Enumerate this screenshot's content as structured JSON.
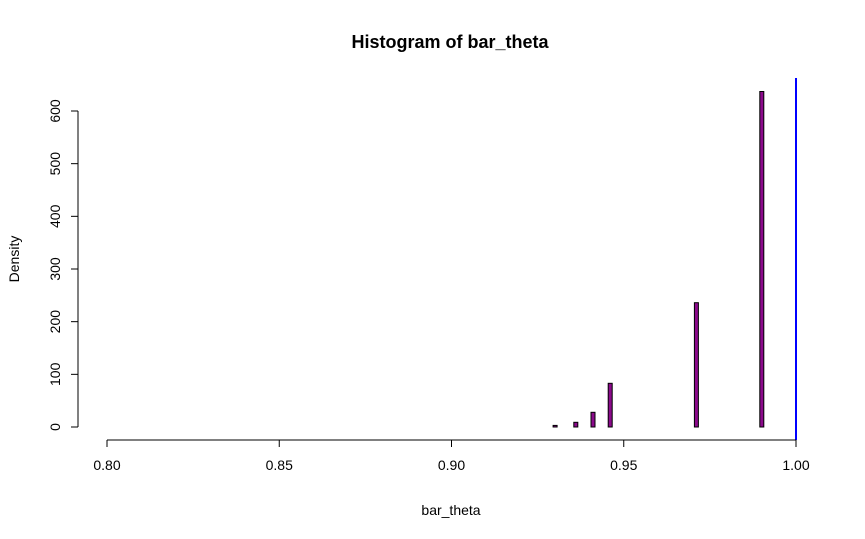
{
  "chart_data": {
    "type": "bar",
    "title": "Histogram of bar_theta",
    "xlabel": "bar_theta",
    "ylabel": "Density",
    "xlim": [
      0.8,
      1.0
    ],
    "ylim": [
      0,
      640
    ],
    "x_ticks": [
      0.8,
      0.85,
      0.9,
      0.95,
      1.0
    ],
    "x_tick_labels": [
      "0.80",
      "0.85",
      "0.90",
      "0.95",
      "1.00"
    ],
    "y_ticks": [
      0,
      100,
      200,
      300,
      400,
      500,
      600
    ],
    "y_tick_labels": [
      "0",
      "100",
      "200",
      "300",
      "400",
      "500",
      "600"
    ],
    "bins": [
      {
        "x0": 0.905,
        "x1": 0.9295,
        "value": 0
      },
      {
        "x0": 0.9295,
        "x1": 0.9305,
        "value": 3
      },
      {
        "x0": 0.9305,
        "x1": 0.9355,
        "value": 0
      },
      {
        "x0": 0.9355,
        "x1": 0.9365,
        "value": 9
      },
      {
        "x0": 0.9365,
        "x1": 0.9405,
        "value": 0
      },
      {
        "x0": 0.9405,
        "x1": 0.9415,
        "value": 28
      },
      {
        "x0": 0.9415,
        "x1": 0.9455,
        "value": 0
      },
      {
        "x0": 0.9455,
        "x1": 0.9465,
        "value": 83
      },
      {
        "x0": 0.9465,
        "x1": 0.9705,
        "value": 0
      },
      {
        "x0": 0.9705,
        "x1": 0.9715,
        "value": 236
      },
      {
        "x0": 0.9715,
        "x1": 0.9895,
        "value": 0
      },
      {
        "x0": 0.9895,
        "x1": 0.9905,
        "value": 637
      }
    ],
    "bar_fill": "#8b0a8b",
    "bar_stroke": "#000000",
    "vline": {
      "x": 1.0,
      "color": "#0000ff"
    },
    "grid": false,
    "legend": "none"
  }
}
